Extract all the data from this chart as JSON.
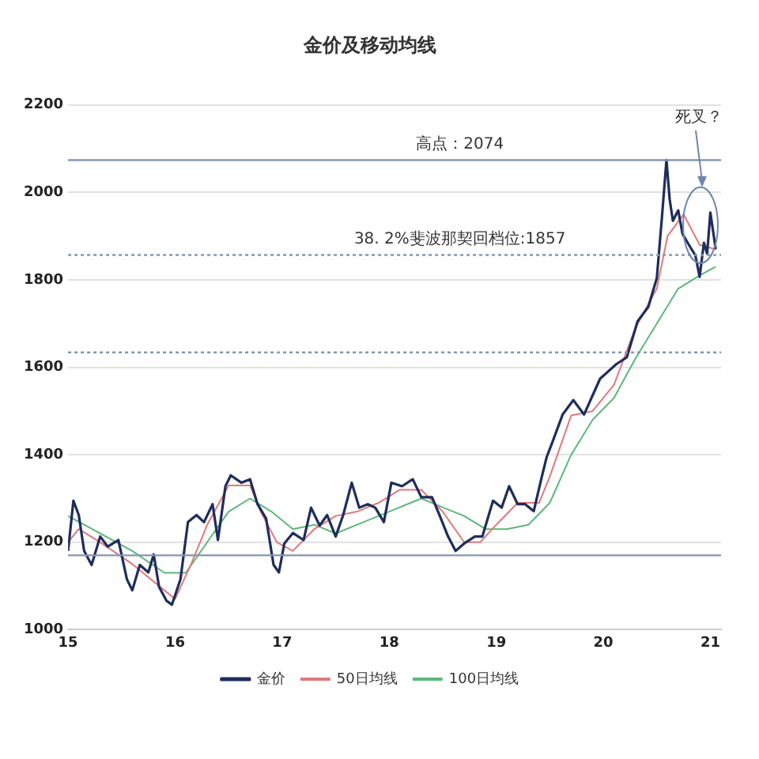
{
  "chart_data": {
    "type": "line",
    "title": "金价及移动均线",
    "xlim": [
      15,
      21.1
    ],
    "xticks": [
      15,
      16,
      17,
      18,
      19,
      20,
      21
    ],
    "ylim": [
      1000,
      2200
    ],
    "yticks": [
      1000,
      1200,
      1400,
      1600,
      1800,
      2000,
      2200
    ],
    "grid": "y",
    "legend": "bottom",
    "marker": "none",
    "series": [
      {
        "name": "金价",
        "color": "#1f2d5c",
        "x": [
          15.0,
          15.05,
          15.1,
          15.15,
          15.22,
          15.3,
          15.37,
          15.47,
          15.55,
          15.6,
          15.67,
          15.75,
          15.8,
          15.85,
          15.92,
          15.97,
          16.05,
          16.12,
          16.2,
          16.27,
          16.35,
          16.4,
          16.47,
          16.52,
          16.62,
          16.7,
          16.77,
          16.85,
          16.92,
          16.97,
          17.02,
          17.1,
          17.2,
          17.27,
          17.35,
          17.42,
          17.5,
          17.57,
          17.65,
          17.72,
          17.8,
          17.87,
          17.95,
          18.02,
          18.12,
          18.22,
          18.3,
          18.4,
          18.47,
          18.55,
          18.62,
          18.7,
          18.8,
          18.87,
          18.97,
          19.05,
          19.12,
          19.2,
          19.27,
          19.35,
          19.42,
          19.47,
          19.52,
          19.62,
          19.72,
          19.82,
          19.97,
          20.12,
          20.22,
          20.32,
          20.42,
          20.5,
          20.55,
          20.59,
          20.62,
          20.65,
          20.7,
          20.74,
          20.8,
          20.86,
          20.9,
          20.94,
          20.97,
          21.0,
          21.05
        ],
        "values": [
          1180,
          1295,
          1262,
          1180,
          1148,
          1213,
          1190,
          1205,
          1115,
          1090,
          1148,
          1131,
          1172,
          1098,
          1066,
          1057,
          1115,
          1246,
          1262,
          1246,
          1287,
          1205,
          1328,
          1353,
          1336,
          1344,
          1287,
          1254,
          1148,
          1131,
          1197,
          1221,
          1205,
          1279,
          1238,
          1262,
          1213,
          1262,
          1336,
          1279,
          1287,
          1279,
          1246,
          1336,
          1328,
          1344,
          1303,
          1303,
          1262,
          1213,
          1180,
          1197,
          1213,
          1213,
          1295,
          1279,
          1328,
          1287,
          1287,
          1271,
          1344,
          1394,
          1426,
          1492,
          1525,
          1492,
          1574,
          1607,
          1623,
          1705,
          1738,
          1804,
          1950,
          2074,
          1984,
          1935,
          1959,
          1905,
          1880,
          1856,
          1807,
          1885,
          1860,
          1954,
          1870
        ]
      },
      {
        "name": "50日均线",
        "color": "#e07a7a",
        "x": [
          15.0,
          15.1,
          15.3,
          15.6,
          15.9,
          16.0,
          16.15,
          16.3,
          16.5,
          16.7,
          16.8,
          16.95,
          17.1,
          17.3,
          17.5,
          17.7,
          17.9,
          18.1,
          18.3,
          18.5,
          18.7,
          18.85,
          19.0,
          19.2,
          19.4,
          19.5,
          19.7,
          19.9,
          20.1,
          20.3,
          20.5,
          20.6,
          20.75,
          20.9,
          21.05
        ],
        "values": [
          1200,
          1230,
          1200,
          1150,
          1090,
          1070,
          1150,
          1240,
          1330,
          1330,
          1270,
          1200,
          1180,
          1230,
          1260,
          1270,
          1290,
          1320,
          1320,
          1270,
          1200,
          1200,
          1240,
          1290,
          1290,
          1350,
          1490,
          1500,
          1560,
          1690,
          1780,
          1900,
          1950,
          1880,
          1870
        ]
      },
      {
        "name": "100日均线",
        "color": "#5cb87a",
        "x": [
          15.0,
          15.3,
          15.6,
          15.9,
          16.1,
          16.3,
          16.5,
          16.7,
          16.9,
          17.1,
          17.3,
          17.5,
          17.7,
          17.9,
          18.1,
          18.3,
          18.5,
          18.7,
          18.9,
          19.1,
          19.3,
          19.5,
          19.7,
          19.9,
          20.1,
          20.3,
          20.5,
          20.7,
          20.9,
          21.05
        ],
        "values": [
          1260,
          1220,
          1180,
          1130,
          1130,
          1200,
          1270,
          1300,
          1270,
          1230,
          1240,
          1220,
          1240,
          1260,
          1280,
          1300,
          1280,
          1260,
          1230,
          1230,
          1240,
          1290,
          1400,
          1480,
          1530,
          1620,
          1700,
          1780,
          1810,
          1830
        ]
      }
    ],
    "ref_lines": [
      {
        "axis": "y",
        "value": 2074,
        "label": "高点：2074",
        "color": "#8496b0",
        "line_style": "solid"
      },
      {
        "axis": "y",
        "value": 1857,
        "label": "38. 2%斐波那契回档位:1857",
        "color": "#8496b0",
        "line_style": "dotted"
      },
      {
        "axis": "y",
        "value": 1634,
        "color": "#8496b0",
        "line_style": "dotted"
      },
      {
        "axis": "y",
        "value": 1170,
        "color": "#8496b0",
        "line_style": "solid"
      }
    ],
    "annotations": [
      "死叉？"
    ]
  }
}
